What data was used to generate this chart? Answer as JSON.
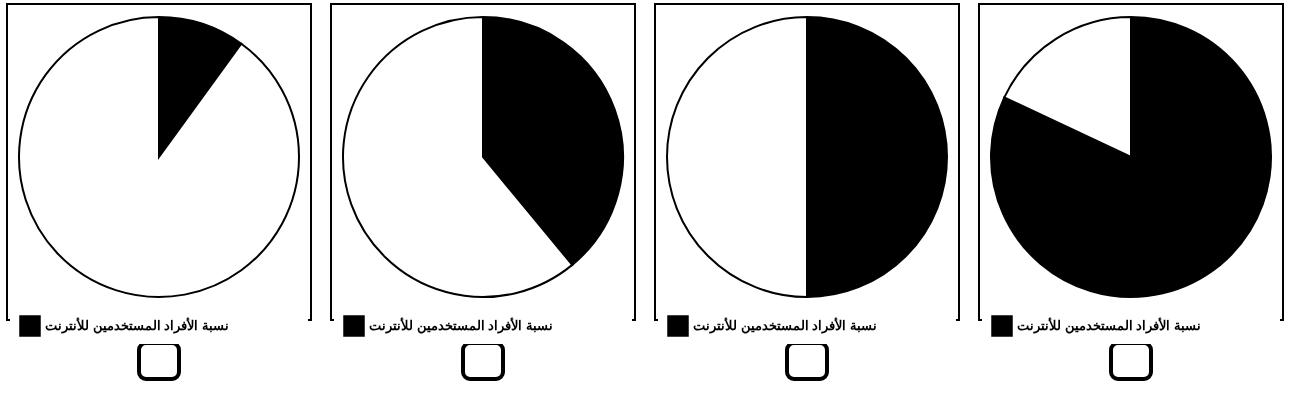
{
  "chart_data": [
    {
      "type": "pie",
      "categories": [
        "نسبة الأفراد المستخدمين للأنترنت",
        null
      ],
      "values": [
        10,
        90
      ],
      "colors": [
        "#000000",
        "#ffffff"
      ],
      "legend": "bottom"
    },
    {
      "type": "pie",
      "categories": [
        "نسبة الأفراد المستخدمين للأنترنت",
        null
      ],
      "values": [
        39,
        61
      ],
      "colors": [
        "#000000",
        "#ffffff"
      ],
      "legend": "bottom"
    },
    {
      "type": "pie",
      "categories": [
        "نسبة الأفراد المستخدمين للأنترنت",
        null
      ],
      "values": [
        50,
        50
      ],
      "colors": [
        "#000000",
        "#ffffff"
      ],
      "legend": "bottom"
    },
    {
      "type": "pie",
      "categories": [
        "نسبة الأفراد المستخدمين للأنترنت",
        null
      ],
      "values": [
        82,
        18
      ],
      "colors": [
        "#000000",
        "#ffffff"
      ],
      "legend": "bottom"
    }
  ]
}
